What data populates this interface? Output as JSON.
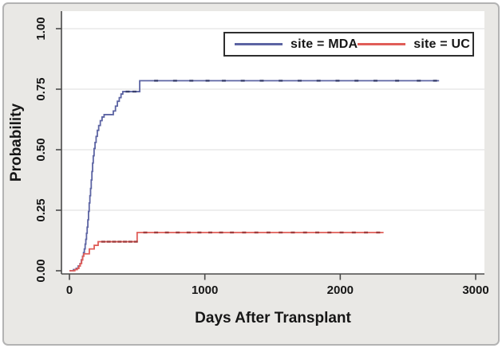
{
  "figure": {
    "outer_background": "#ffffff",
    "panel_background": "#e9e8e5",
    "plot_background": "#ffffff",
    "panel_border_color": "#b3b3b3",
    "axis_color": "#4a4a4a",
    "grid_color": "#e3e3e3",
    "text_color": "#161616",
    "legend_border_color": "#2e2e2e"
  },
  "chart_data": {
    "type": "line",
    "subtype": "kaplan-meier-step",
    "title": "",
    "xlabel": "Days After Transplant",
    "ylabel": "Probability",
    "xlim": [
      0,
      3000
    ],
    "ylim": [
      0,
      1
    ],
    "xticks": [
      0,
      1000,
      2000,
      3000
    ],
    "yticks": [
      0,
      0.25,
      0.5,
      0.75,
      1
    ],
    "ytick_labels": [
      "0.00",
      "0.25",
      "0.50",
      "0.75",
      "1.00"
    ],
    "grid": "horizontal",
    "legend_position": "top-center-inside",
    "series": [
      {
        "name": "site = MDA",
        "color": "#5c64a3",
        "censor_color": "#39406e",
        "end_day": 2730,
        "final_probability": 0.785,
        "steps": [
          [
            0,
            0
          ],
          [
            30,
            0.005
          ],
          [
            50,
            0.01
          ],
          [
            65,
            0.02
          ],
          [
            78,
            0.03
          ],
          [
            88,
            0.045
          ],
          [
            97,
            0.06
          ],
          [
            104,
            0.075
          ],
          [
            110,
            0.09
          ],
          [
            116,
            0.11
          ],
          [
            121,
            0.13
          ],
          [
            126,
            0.155
          ],
          [
            131,
            0.18
          ],
          [
            136,
            0.21
          ],
          [
            141,
            0.245
          ],
          [
            146,
            0.28
          ],
          [
            151,
            0.31
          ],
          [
            156,
            0.34
          ],
          [
            161,
            0.375
          ],
          [
            166,
            0.41
          ],
          [
            171,
            0.445
          ],
          [
            176,
            0.475
          ],
          [
            182,
            0.505
          ],
          [
            189,
            0.53
          ],
          [
            197,
            0.555
          ],
          [
            206,
            0.58
          ],
          [
            216,
            0.6
          ],
          [
            228,
            0.62
          ],
          [
            241,
            0.635
          ],
          [
            256,
            0.645
          ],
          [
            324,
            0.66
          ],
          [
            340,
            0.68
          ],
          [
            354,
            0.7
          ],
          [
            368,
            0.715
          ],
          [
            381,
            0.73
          ],
          [
            394,
            0.74
          ],
          [
            519,
            0.785
          ]
        ],
        "censor_days": [
          430,
          480,
          640,
          780,
          900,
          1020,
          1140,
          1280,
          1420,
          1560,
          1700,
          1840,
          1980,
          2120,
          2260,
          2420,
          2580,
          2700
        ]
      },
      {
        "name": "site = UC",
        "color": "#e05d58",
        "censor_color": "#a03c3c",
        "end_day": 2320,
        "final_probability": 0.158,
        "steps": [
          [
            0,
            0
          ],
          [
            40,
            0.005
          ],
          [
            58,
            0.01
          ],
          [
            70,
            0.02
          ],
          [
            80,
            0.03
          ],
          [
            90,
            0.045
          ],
          [
            98,
            0.06
          ],
          [
            106,
            0.07
          ],
          [
            147,
            0.09
          ],
          [
            183,
            0.105
          ],
          [
            212,
            0.12
          ],
          [
            500,
            0.158
          ]
        ],
        "censor_days": [
          250,
          290,
          330,
          370,
          410,
          450,
          490,
          560,
          640,
          720,
          800,
          880,
          960,
          1040,
          1120,
          1200,
          1290,
          1380,
          1470,
          1560,
          1650,
          1740,
          1830,
          1920,
          2010,
          2100,
          2190,
          2280
        ]
      }
    ]
  }
}
